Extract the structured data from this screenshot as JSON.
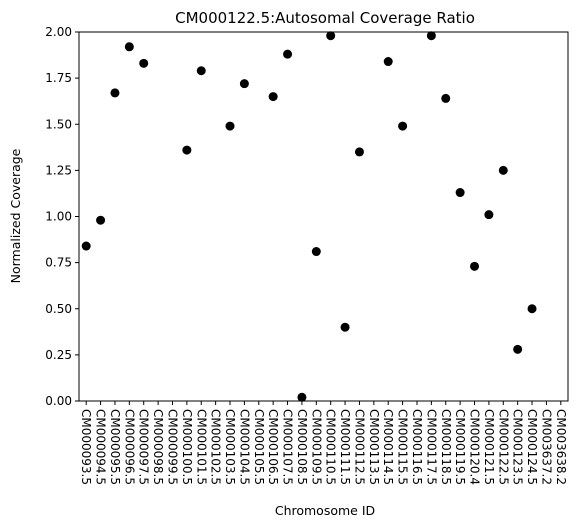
{
  "chart_data": {
    "type": "scatter",
    "title": "CM000122.5:Autosomal Coverage Ratio",
    "xlabel": "Chromosome ID",
    "ylabel": "Normalized Coverage",
    "ylim": [
      0,
      2.0
    ],
    "yticks": [
      "0.00",
      "0.25",
      "0.50",
      "0.75",
      "1.00",
      "1.25",
      "1.50",
      "1.75",
      "2.00"
    ],
    "grid": false,
    "marker_color": "#000000",
    "categories": [
      "CM000093.5",
      "CM000094.5",
      "CM000095.5",
      "CM000096.5",
      "CM000097.5",
      "CM000098.5",
      "CM000099.5",
      "CM000100.5",
      "CM000101.5",
      "CM000102.5",
      "CM000103.5",
      "CM000104.5",
      "CM000105.5",
      "CM000106.5",
      "CM000107.5",
      "CM000108.5",
      "CM000109.5",
      "CM000110.5",
      "CM000111.5",
      "CM000112.5",
      "CM000113.5",
      "CM000114.5",
      "CM000115.5",
      "CM000116.5",
      "CM000117.5",
      "CM000118.5",
      "CM000119.5",
      "CM000120.4",
      "CM000121.5",
      "CM000122.5",
      "CM000123.5",
      "CM000124.5",
      "CM003637.2",
      "CM003638.2"
    ],
    "points": [
      {
        "x": "CM000093.5",
        "y": 0.84
      },
      {
        "x": "CM000094.5",
        "y": 0.98
      },
      {
        "x": "CM000095.5",
        "y": 1.67
      },
      {
        "x": "CM000096.5",
        "y": 1.92
      },
      {
        "x": "CM000097.5",
        "y": 1.83
      },
      {
        "x": "CM000100.5",
        "y": 1.36
      },
      {
        "x": "CM000101.5",
        "y": 1.79
      },
      {
        "x": "CM000103.5",
        "y": 1.49
      },
      {
        "x": "CM000104.5",
        "y": 1.72
      },
      {
        "x": "CM000106.5",
        "y": 1.65
      },
      {
        "x": "CM000107.5",
        "y": 1.88
      },
      {
        "x": "CM000108.5",
        "y": 0.02
      },
      {
        "x": "CM000109.5",
        "y": 0.81
      },
      {
        "x": "CM000110.5",
        "y": 1.98
      },
      {
        "x": "CM000111.5",
        "y": 0.4
      },
      {
        "x": "CM000112.5",
        "y": 1.35
      },
      {
        "x": "CM000114.5",
        "y": 1.84
      },
      {
        "x": "CM000115.5",
        "y": 1.49
      },
      {
        "x": "CM000117.5",
        "y": 1.98
      },
      {
        "x": "CM000118.5",
        "y": 1.64
      },
      {
        "x": "CM000119.5",
        "y": 1.13
      },
      {
        "x": "CM000120.4",
        "y": 0.73
      },
      {
        "x": "CM000121.5",
        "y": 1.01
      },
      {
        "x": "CM000122.5",
        "y": 1.25
      },
      {
        "x": "CM000123.5",
        "y": 0.28
      },
      {
        "x": "CM000124.5",
        "y": 0.5
      }
    ]
  }
}
